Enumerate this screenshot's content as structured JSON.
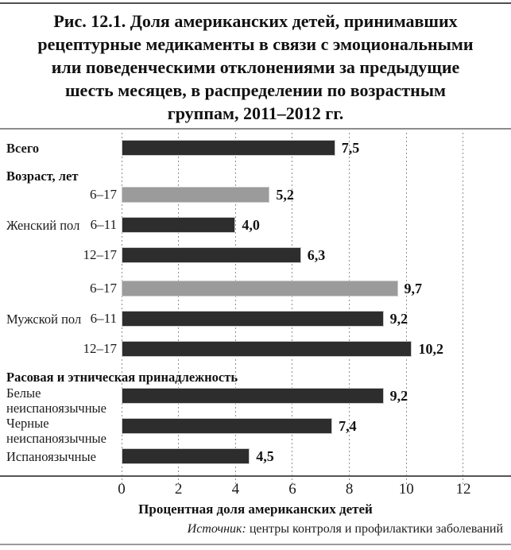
{
  "page": {
    "title_lines": [
      "Рис. 12.1. Доля американских детей, принимавших",
      "рецептурные медикаменты в связи с эмоциональными",
      "или поведенческими отклонениями за предыдущие",
      "шесть месяцев, в распределении по возрастным",
      "группам, 2011–2012 гг."
    ],
    "source_prefix": "Источник:",
    "source_text": " центры контроля и профилактики заболеваний"
  },
  "chart_data": {
    "type": "bar",
    "orientation": "horizontal",
    "title": "Рис. 12.1. Доля американских детей, принимавших рецептурные медикаменты в связи с эмоциональными или поведенческими отклонениями за предыдущие шесть месяцев, в распределении по возрастным группам, 2011–2012 гг.",
    "xlabel": "Процентная доля американских детей",
    "x_axis": {
      "label": "Процентная доля американских детей",
      "ticks": [
        0,
        2,
        4,
        6,
        8,
        10,
        12
      ],
      "range": [
        0,
        13.1
      ],
      "gridlines": "dashed"
    },
    "colors": {
      "dark": "#2d2d2d",
      "gray": "#9b9b9b"
    },
    "rows": [
      {
        "type": "bar",
        "left_label": "Всего",
        "left_bold": true,
        "value": 7.5,
        "value_label": "7,5",
        "color": "dark"
      },
      {
        "type": "header",
        "label": "Возраст, лет"
      },
      {
        "type": "bar",
        "sub_label": "6–17",
        "value": 5.2,
        "value_label": "5,2",
        "color": "gray"
      },
      {
        "type": "bar",
        "left_label": "Женский пол",
        "sub_label": "6–11",
        "value": 4.0,
        "value_label": "4,0",
        "color": "dark"
      },
      {
        "type": "bar",
        "sub_label": "12–17",
        "value": 6.3,
        "value_label": "6,3",
        "color": "dark"
      },
      {
        "type": "gap"
      },
      {
        "type": "bar",
        "sub_label": "6–17",
        "value": 9.7,
        "value_label": "9,7",
        "color": "gray"
      },
      {
        "type": "bar",
        "left_label": "Мужской пол",
        "sub_label": "6–11",
        "value": 9.2,
        "value_label": "9,2",
        "color": "dark"
      },
      {
        "type": "bar",
        "sub_label": "12–17",
        "value": 10.2,
        "value_label": "10,2",
        "color": "dark"
      },
      {
        "type": "header",
        "label": "Расовая и этническая принадлежность"
      },
      {
        "type": "bar",
        "left_label": "Белые неиспаноязычные",
        "two_line": true,
        "value": 9.2,
        "value_label": "9,2",
        "color": "dark"
      },
      {
        "type": "bar",
        "left_label": "Черные неиспаноязычные",
        "two_line": true,
        "value": 7.4,
        "value_label": "7,4",
        "color": "dark"
      },
      {
        "type": "bar",
        "left_label": "Испаноязычные",
        "value": 4.5,
        "value_label": "4,5",
        "color": "dark"
      }
    ]
  }
}
